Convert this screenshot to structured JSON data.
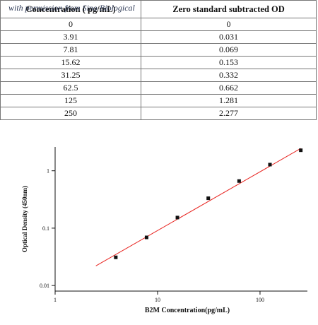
{
  "watermark": "with permission from Sino Biological",
  "table": {
    "header": [
      "Concentration ( pg/mL)",
      "Zero standard subtracted OD"
    ],
    "rows": [
      [
        "0",
        "0"
      ],
      [
        "3.91",
        "0.031"
      ],
      [
        "7.81",
        "0.069"
      ],
      [
        "15.62",
        "0.153"
      ],
      [
        "31.25",
        "0.332"
      ],
      [
        "62.5",
        "0.662"
      ],
      [
        "125",
        "1.281"
      ],
      [
        "250",
        "2.277"
      ]
    ]
  },
  "chart_data": {
    "type": "scatter",
    "xlabel": "B2M   Concentration(pg/mL)",
    "ylabel": "Optical Density (450nm)",
    "x": [
      3.91,
      7.81,
      15.62,
      31.25,
      62.5,
      125,
      250
    ],
    "values": [
      0.031,
      0.069,
      0.153,
      0.332,
      0.662,
      1.281,
      2.277
    ],
    "color": "#111111",
    "xlog": true,
    "ylog": true,
    "xlim": [
      1,
      290
    ],
    "ylim": [
      0.008,
      2.6
    ],
    "xticks": [
      1,
      10,
      100
    ],
    "yticks": [
      0.01,
      0.1,
      1
    ],
    "fit": {
      "x": [
        2.5,
        250
      ],
      "values": [
        0.022,
        2.45
      ],
      "color": "#e8231f"
    }
  }
}
